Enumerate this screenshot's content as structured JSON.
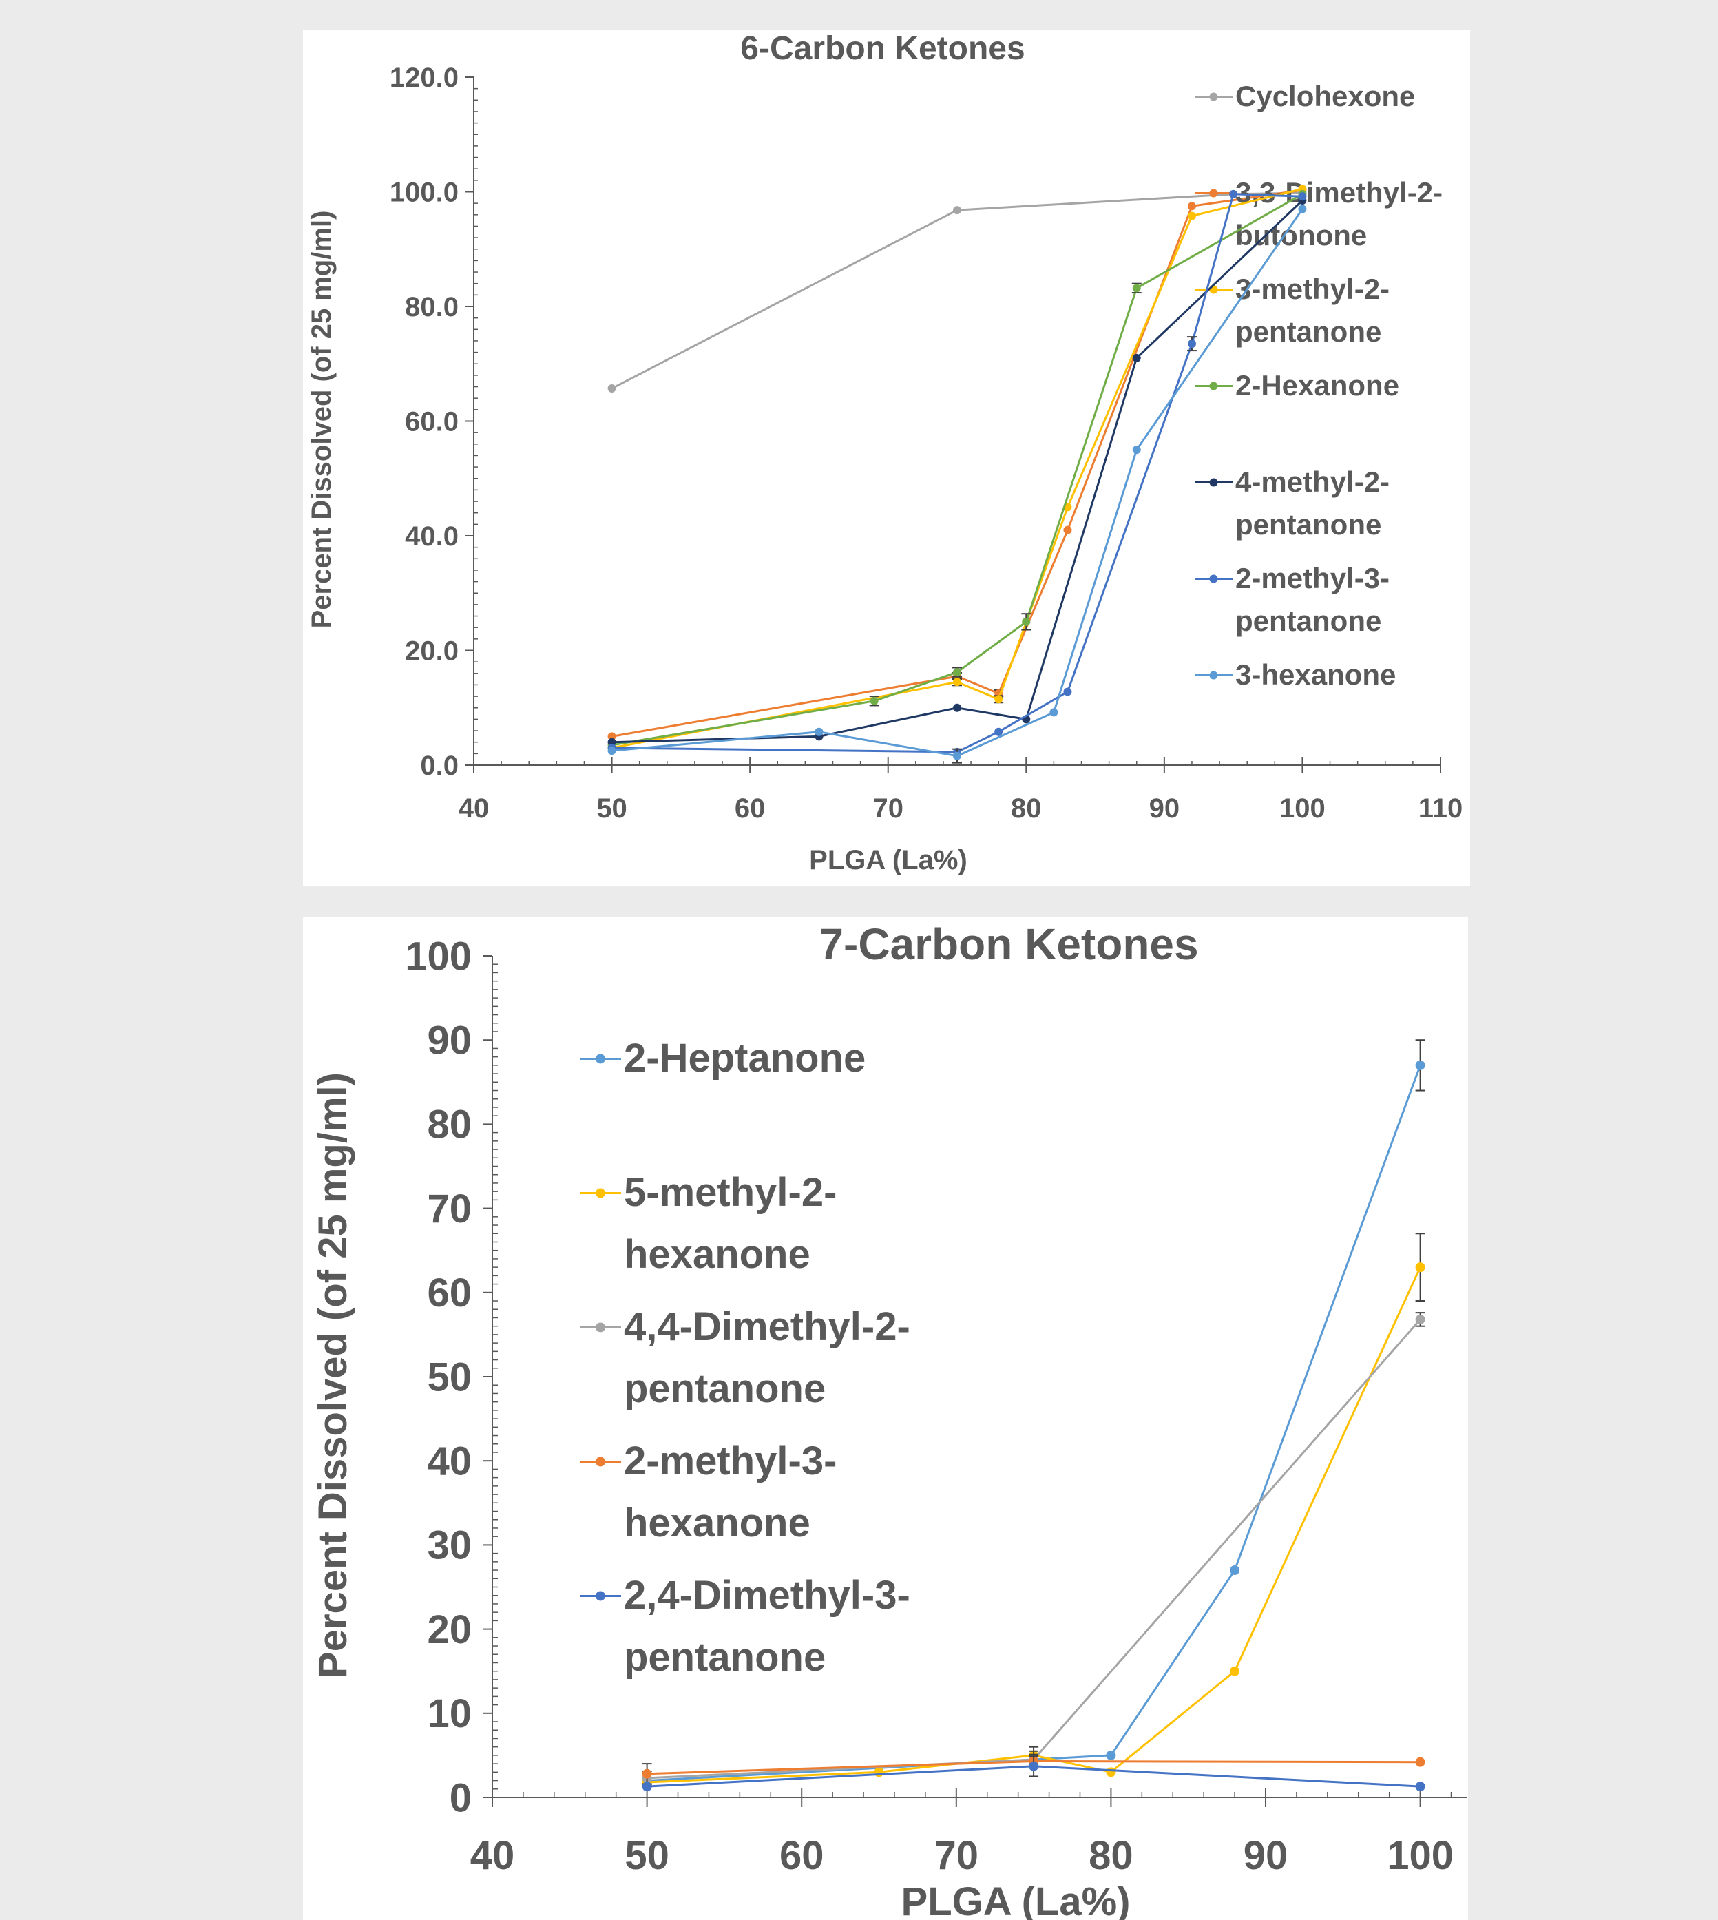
{
  "chart_data": [
    {
      "type": "line",
      "title": "6-Carbon Ketones",
      "xlabel": "PLGA (La%)",
      "ylabel": "Percent Dissolved (of 25 mg/ml)",
      "xlim": [
        40,
        110
      ],
      "ylim": [
        0,
        120
      ],
      "xticks": [
        "40",
        "50",
        "60",
        "70",
        "80",
        "90",
        "100",
        "110"
      ],
      "yticks": [
        "0.0",
        "20.0",
        "40.0",
        "60.0",
        "80.0",
        "100.0",
        "120.0"
      ],
      "grid": false,
      "legend_position": "right",
      "series": [
        {
          "name": "Cyclohexone",
          "color": "#a5a5a5",
          "legend": [
            "Cyclohexone"
          ],
          "x": [
            50,
            75,
            95,
            100
          ],
          "y": [
            65.7,
            96.8,
            99.6,
            99.8
          ],
          "err": [
            0,
            0,
            0,
            0
          ]
        },
        {
          "name": "3,3-Dimethyl-2-butonone",
          "color": "#ed7d31",
          "legend": [
            "3,3-Dimethyl-2-",
            "butonone"
          ],
          "x": [
            50,
            75,
            78,
            83,
            92,
            100
          ],
          "y": [
            5.0,
            15.5,
            12.5,
            41.0,
            97.5,
            100.3
          ],
          "err": [
            0,
            0.6,
            0.6,
            0,
            0,
            0
          ]
        },
        {
          "name": "3-methyl-2-pentanone",
          "color": "#ffc000",
          "legend": [
            "3-methyl-2-",
            "pentanone"
          ],
          "x": [
            50,
            75,
            78,
            83,
            92,
            100
          ],
          "y": [
            3.0,
            14.5,
            11.5,
            45.0,
            95.8,
            100.5
          ],
          "err": [
            0,
            0.6,
            0.6,
            0,
            0,
            0
          ]
        },
        {
          "name": "2-Hexanone",
          "color": "#70ad47",
          "legend": [
            "2-Hexanone"
          ],
          "x": [
            50,
            69,
            75,
            80,
            88,
            100
          ],
          "y": [
            3.5,
            11.2,
            16.2,
            25.0,
            83.2,
            99.6
          ],
          "err": [
            0,
            0.8,
            0.8,
            1.4,
            0.8,
            0
          ]
        },
        {
          "name": "4-methyl-2-pentanone",
          "color": "#1f3864",
          "legend": [
            "4-methyl-2-",
            "pentanone"
          ],
          "x": [
            50,
            65,
            75,
            80,
            88,
            100
          ],
          "y": [
            4.0,
            5.0,
            10.0,
            8.0,
            71.0,
            98.5
          ],
          "err": [
            0,
            0,
            0,
            0,
            0,
            0
          ]
        },
        {
          "name": "2-methyl-3-pentanone",
          "color": "#4472c4",
          "legend": [
            "2-methyl-3-",
            "pentanone"
          ],
          "x": [
            50,
            75,
            78,
            83,
            92,
            95,
            100
          ],
          "y": [
            3.0,
            2.3,
            5.8,
            12.8,
            73.5,
            99.6,
            99.2
          ],
          "err": [
            0,
            0,
            0,
            0,
            1.2,
            0,
            0
          ]
        },
        {
          "name": "3-hexanone",
          "color": "#5b9bd5",
          "legend": [
            "3-hexanone"
          ],
          "x": [
            50,
            65,
            75,
            82,
            88,
            100
          ],
          "y": [
            2.5,
            5.8,
            1.6,
            9.2,
            55.0,
            97.0
          ],
          "err": [
            0,
            0,
            1.2,
            0,
            0,
            0
          ]
        }
      ]
    },
    {
      "type": "line",
      "title": "7-Carbon Ketones",
      "xlabel": "PLGA (La%)",
      "ylabel": "Percent Dissolved (of 25 mg/ml)",
      "xlim": [
        40,
        103
      ],
      "ylim": [
        0,
        100
      ],
      "xticks": [
        "40",
        "50",
        "60",
        "70",
        "80",
        "90",
        "100"
      ],
      "yticks": [
        "0",
        "10",
        "20",
        "30",
        "40",
        "50",
        "60",
        "70",
        "80",
        "90",
        "100"
      ],
      "grid": false,
      "legend_position": "left",
      "series": [
        {
          "name": "2-Heptanone",
          "color": "#5b9bd5",
          "legend": [
            "2-Heptanone"
          ],
          "x": [
            50,
            75,
            80,
            88,
            100
          ],
          "y": [
            2.0,
            4.5,
            5.0,
            27.0,
            87.0
          ],
          "err": [
            0,
            0,
            0,
            0,
            3.0
          ]
        },
        {
          "name": "5-methyl-2-hexanone",
          "color": "#ffc000",
          "legend": [
            "5-methyl-2-",
            "hexanone"
          ],
          "x": [
            50,
            65,
            75,
            80,
            88,
            100
          ],
          "y": [
            1.8,
            3.0,
            5.0,
            3.0,
            15.0,
            63.0
          ],
          "err": [
            0,
            0,
            1.0,
            0,
            0,
            4.0
          ]
        },
        {
          "name": "4,4-Dimethyl-2-pentanone",
          "color": "#a5a5a5",
          "legend": [
            "4,4-Dimethyl-2-",
            "pentanone"
          ],
          "x": [
            50,
            75,
            100
          ],
          "y": [
            2.3,
            4.5,
            56.8
          ],
          "err": [
            0.8,
            1.0,
            0.8
          ]
        },
        {
          "name": "2-methyl-3-hexanone",
          "color": "#ed7d31",
          "legend": [
            "2-methyl-3-",
            "hexanone"
          ],
          "x": [
            50,
            75,
            100
          ],
          "y": [
            2.8,
            4.3,
            4.2
          ],
          "err": [
            1.2,
            0.8,
            0
          ]
        },
        {
          "name": "2,4-Dimethyl-3-pentanone",
          "color": "#4472c4",
          "legend": [
            "2,4-Dimethyl-3-",
            "pentanone"
          ],
          "x": [
            50,
            75,
            100
          ],
          "y": [
            1.3,
            3.7,
            1.3
          ],
          "err": [
            0,
            1.2,
            0
          ]
        }
      ]
    }
  ]
}
